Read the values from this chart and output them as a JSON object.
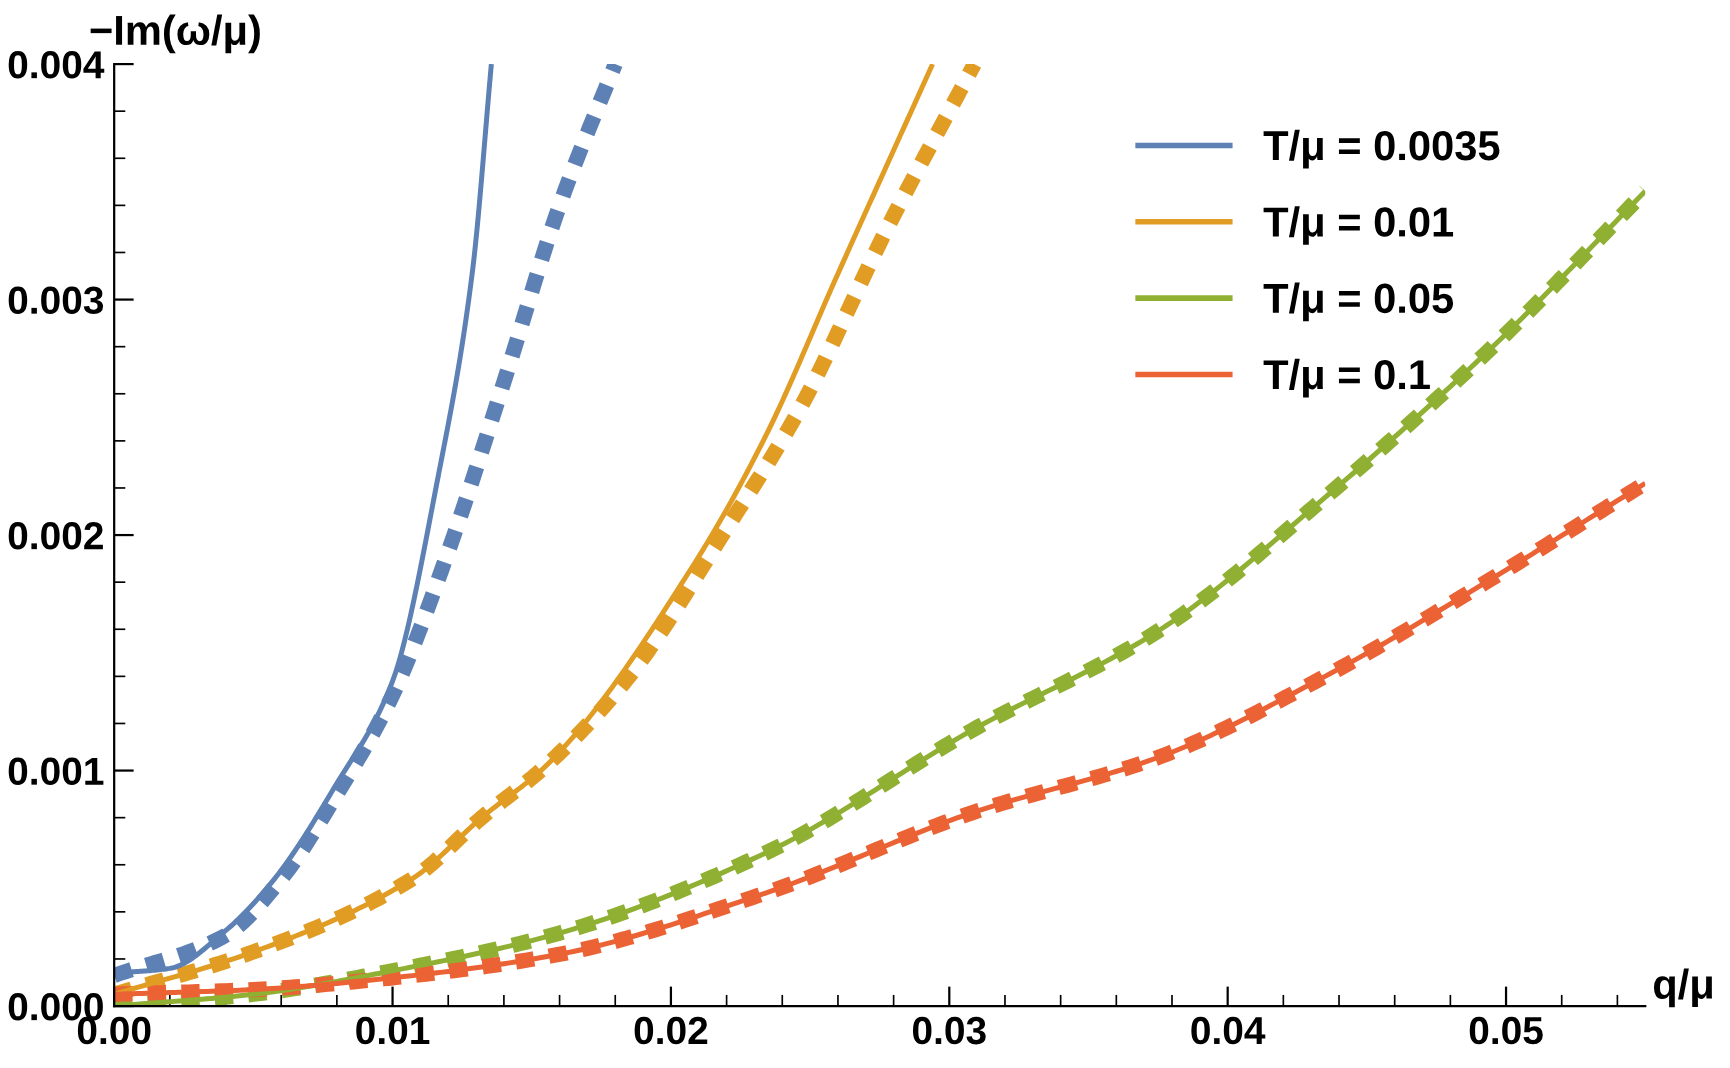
{
  "chart_data": {
    "type": "line",
    "xlabel": "q/μ",
    "ylabel": "−Im(ω/μ)",
    "xlim": [
      0,
      0.055
    ],
    "ylim": [
      0,
      0.004
    ],
    "xticks": [
      {
        "value": 0,
        "label": "0.00"
      },
      {
        "value": 0.002,
        "label": null
      },
      {
        "value": 0.004,
        "label": null
      },
      {
        "value": 0.006,
        "label": null
      },
      {
        "value": 0.008,
        "label": null
      },
      0.01,
      {
        "value": 0.012,
        "label": null
      },
      {
        "value": 0.014,
        "label": null
      },
      {
        "value": 0.016,
        "label": null
      },
      {
        "value": 0.018,
        "label": null
      },
      0.02,
      {
        "value": 0.022,
        "label": null
      },
      {
        "value": 0.024,
        "label": null
      },
      {
        "value": 0.026,
        "label": null
      },
      {
        "value": 0.028,
        "label": null
      },
      0.03,
      {
        "value": 0.032,
        "label": null
      },
      {
        "value": 0.034,
        "label": null
      },
      {
        "value": 0.036,
        "label": null
      },
      {
        "value": 0.038,
        "label": null
      },
      0.04,
      {
        "value": 0.042,
        "label": null
      },
      {
        "value": 0.044,
        "label": null
      },
      {
        "value": 0.046,
        "label": null
      },
      {
        "value": 0.048,
        "label": null
      },
      0.05,
      {
        "value": 0.052,
        "label": null
      },
      {
        "value": 0.054,
        "label": null
      }
    ],
    "yticks": [
      {
        "value": 0,
        "label": "0.000"
      },
      {
        "value": 0.0002,
        "label": null
      },
      {
        "value": 0.0004,
        "label": null
      },
      {
        "value": 0.0006,
        "label": null
      },
      {
        "value": 0.0008,
        "label": null
      },
      0.001,
      {
        "value": 0.0012,
        "label": null
      },
      {
        "value": 0.0014,
        "label": null
      },
      {
        "value": 0.0016,
        "label": null
      },
      {
        "value": 0.0018,
        "label": null
      },
      0.002,
      {
        "value": 0.0022,
        "label": null
      },
      {
        "value": 0.0024,
        "label": null
      },
      {
        "value": 0.0026,
        "label": null
      },
      {
        "value": 0.0028,
        "label": null
      },
      0.003,
      {
        "value": 0.0032,
        "label": null
      },
      {
        "value": 0.0034,
        "label": null
      },
      {
        "value": 0.0036,
        "label": null
      },
      {
        "value": 0.0038,
        "label": null
      },
      0.004
    ],
    "grid": false,
    "legend": "top right",
    "marker": "none",
    "series": [
      {
        "name": "T/μ = 0.0035",
        "color": "#5e81b5",
        "line_style": "dashed",
        "x": [
          0,
          0.004,
          0.006,
          0.008,
          0.01,
          0.012,
          0.014,
          0.016,
          0.018
        ],
        "values": [
          0.00013,
          0.0003,
          0.00054,
          0.0009,
          0.00132,
          0.00193,
          0.00265,
          0.0034,
          0.004
        ]
      },
      {
        "name": "T/μ = 0.01",
        "color": "#e19c24",
        "line_style": "dashed",
        "x": [
          0,
          0.005,
          0.0107,
          0.0132,
          0.0156,
          0.0185,
          0.0219,
          0.0246,
          0.0278,
          0.0309
        ],
        "values": [
          5e-05,
          0.00023,
          0.00054,
          0.0008,
          0.00103,
          0.0014,
          0.00201,
          0.00253,
          0.00331,
          0.004
        ]
      },
      {
        "name": "T/μ = 0.05",
        "color": "#8fb032",
        "line_style": "dashed",
        "x": [
          0,
          0.005,
          0.01,
          0.016,
          0.0234,
          0.0308,
          0.0376,
          0.0435,
          0.0497,
          0.055
        ],
        "values": [
          0,
          5e-05,
          0.00015,
          0.00031,
          0.00065,
          0.00117,
          0.0016,
          0.00216,
          0.00282,
          0.00346
        ]
      },
      {
        "name": "T/μ = 0.1",
        "color": "#eb6235",
        "line_style": "dashed",
        "x": [
          0,
          0.005,
          0.01,
          0.016,
          0.0234,
          0.0308,
          0.0376,
          0.0435,
          0.0497,
          0.055
        ],
        "values": [
          5e-05,
          7e-05,
          0.00012,
          0.00022,
          0.00048,
          0.00082,
          0.00106,
          0.0014,
          0.00183,
          0.00222
        ]
      },
      {
        "color": "#5e81b5",
        "line_style": "solid",
        "x": [
          0,
          0.002,
          0.004,
          0.00576,
          0.00797,
          0.01,
          0.01164,
          0.01287,
          0.01355
        ],
        "values": [
          0.00014,
          0.00016,
          0.00032,
          0.00054,
          0.00094,
          0.00138,
          0.00225,
          0.00312,
          0.004
        ]
      },
      {
        "color": "#e19c24",
        "line_style": "solid",
        "x": [
          0,
          0.005,
          0.0107,
          0.0132,
          0.0156,
          0.0209,
          0.0234,
          0.026,
          0.0294
        ],
        "values": [
          5e-05,
          0.00023,
          0.00054,
          0.0008,
          0.00103,
          0.00189,
          0.00242,
          0.00311,
          0.004
        ]
      },
      {
        "color": "#8fb032",
        "line_style": "solid",
        "x": [
          0,
          0.005,
          0.01,
          0.016,
          0.0234,
          0.0308,
          0.0376,
          0.0435,
          0.0497,
          0.055
        ],
        "values": [
          0,
          5e-05,
          0.00015,
          0.00031,
          0.00065,
          0.00117,
          0.0016,
          0.00216,
          0.00282,
          0.00346
        ]
      },
      {
        "color": "#eb6235",
        "line_style": "solid",
        "x": [
          0,
          0.005,
          0.01,
          0.016,
          0.0234,
          0.0308,
          0.0376,
          0.0435,
          0.0497,
          0.055
        ],
        "values": [
          5e-05,
          7e-05,
          0.00012,
          0.00022,
          0.00048,
          0.00082,
          0.00106,
          0.0014,
          0.00183,
          0.00222
        ]
      }
    ]
  }
}
